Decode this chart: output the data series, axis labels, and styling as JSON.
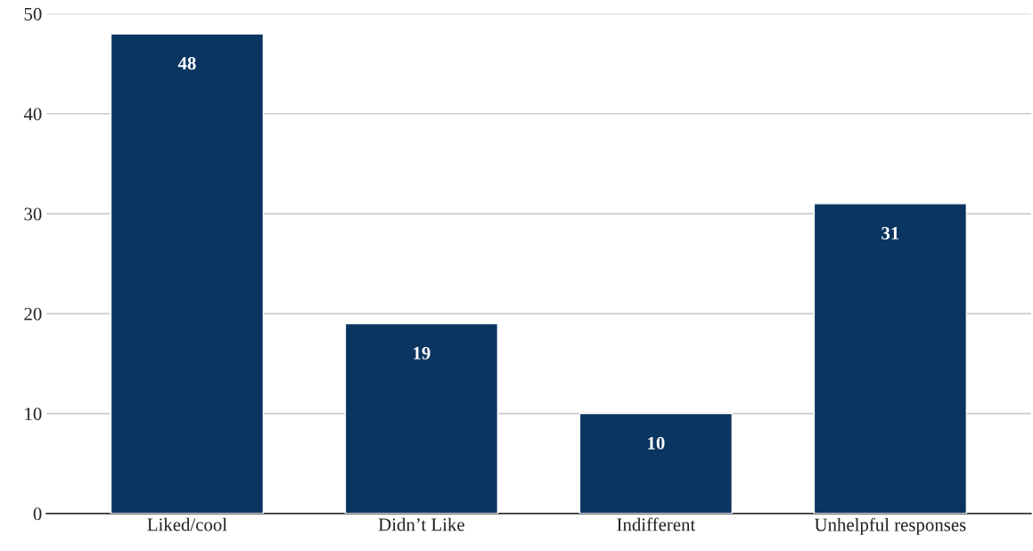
{
  "chart_data": {
    "type": "bar",
    "categories": [
      "Liked/cool",
      "Didn’t Like",
      "Indifferent",
      "Unhelpful responses"
    ],
    "values": [
      48,
      19,
      10,
      31
    ],
    "color": "#0a3560",
    "ylim": [
      0,
      50
    ],
    "yticks": [
      0,
      10,
      20,
      30,
      40,
      50
    ],
    "grid": "y",
    "data_labels": true
  }
}
